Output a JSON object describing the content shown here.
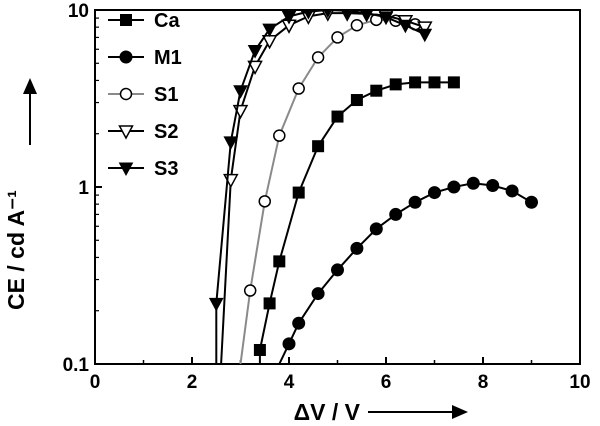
{
  "chart_data": {
    "type": "line",
    "title": "",
    "xlabel": "ΔV / V",
    "ylabel": "CE / cd A⁻¹",
    "xlim": [
      0,
      10
    ],
    "ylim": [
      0.1,
      10
    ],
    "yscale": "log",
    "x_ticks": [
      "0",
      "2",
      "4",
      "6",
      "8",
      "10"
    ],
    "y_ticks": [
      "0.1",
      "1",
      "10"
    ],
    "legend_position": "top-left",
    "series": [
      {
        "name": "Ca",
        "marker": "square-filled",
        "line_color": "#000000",
        "x": [
          3.4,
          3.6,
          3.8,
          4.2,
          4.6,
          5.0,
          5.4,
          5.8,
          6.2,
          6.6,
          7.0,
          7.4
        ],
        "y": [
          0.12,
          0.22,
          0.38,
          0.93,
          1.7,
          2.5,
          3.1,
          3.5,
          3.8,
          3.9,
          3.9,
          3.9
        ]
      },
      {
        "name": "M1",
        "marker": "circle-filled",
        "line_color": "#000000",
        "x": [
          3.8,
          4.0,
          4.2,
          4.6,
          5.0,
          5.4,
          5.8,
          6.2,
          6.6,
          7.0,
          7.4,
          7.8,
          8.2,
          8.6,
          9.0
        ],
        "y": [
          0.1,
          0.13,
          0.17,
          0.25,
          0.34,
          0.45,
          0.58,
          0.7,
          0.82,
          0.93,
          1.0,
          1.05,
          1.02,
          0.95,
          0.82
        ]
      },
      {
        "name": "S1",
        "marker": "circle-open",
        "line_color": "#8a8a8a",
        "x": [
          3.0,
          3.2,
          3.5,
          3.8,
          4.2,
          4.6,
          5.0,
          5.4,
          5.8,
          6.2,
          6.6
        ],
        "y": [
          0.1,
          0.26,
          0.83,
          1.95,
          3.6,
          5.4,
          7.0,
          8.2,
          8.8,
          8.7,
          8.3
        ]
      },
      {
        "name": "S2",
        "marker": "triangle-down-open",
        "line_color": "#000000",
        "x": [
          2.6,
          2.8,
          3.0,
          3.3,
          3.6,
          4.0,
          4.4,
          4.8,
          5.2,
          5.6,
          6.0,
          6.4,
          6.8
        ],
        "y": [
          0.1,
          1.1,
          2.7,
          4.8,
          6.7,
          8.2,
          9.2,
          9.6,
          9.6,
          9.5,
          9.3,
          8.7,
          8.0
        ]
      },
      {
        "name": "S3",
        "marker": "triangle-down-filled",
        "line_color": "#000000",
        "x": [
          2.5,
          2.8,
          3.0,
          3.3,
          3.6,
          4.0,
          4.4,
          4.8,
          5.2,
          5.6,
          6.0,
          6.4,
          6.8
        ],
        "y": [
          0.22,
          1.8,
          3.5,
          5.9,
          7.8,
          9.2,
          9.8,
          10.0,
          9.9,
          9.6,
          9.1,
          8.2,
          7.3
        ]
      }
    ]
  }
}
